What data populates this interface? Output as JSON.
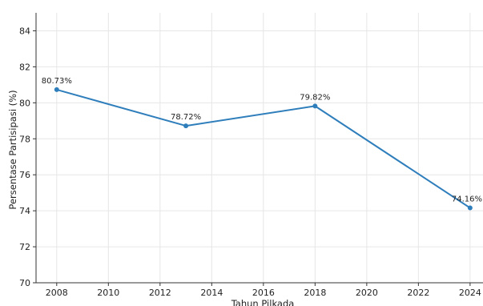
{
  "chart_data": {
    "type": "line",
    "title": "",
    "xlabel": "Tahun Pilkada",
    "ylabel": "Persentase Partisipasi (%)",
    "xlim": [
      2007.2,
      2024.5
    ],
    "ylim": [
      70,
      85
    ],
    "xticks": [
      2008,
      2010,
      2012,
      2014,
      2016,
      2018,
      2020,
      2022,
      2024
    ],
    "yticks": [
      70,
      72,
      74,
      76,
      78,
      80,
      82,
      84
    ],
    "grid": true,
    "legend": "none",
    "series": [
      {
        "color": "#2f7ebc",
        "points": [
          {
            "x": 2008,
            "y": 80.73,
            "label": "80.73%"
          },
          {
            "x": 2013,
            "y": 78.72,
            "label": "78.72%"
          },
          {
            "x": 2018,
            "y": 79.82,
            "label": "79.82%"
          },
          {
            "x": 2024,
            "y": 74.16,
            "label": "74.16%"
          }
        ]
      }
    ]
  }
}
